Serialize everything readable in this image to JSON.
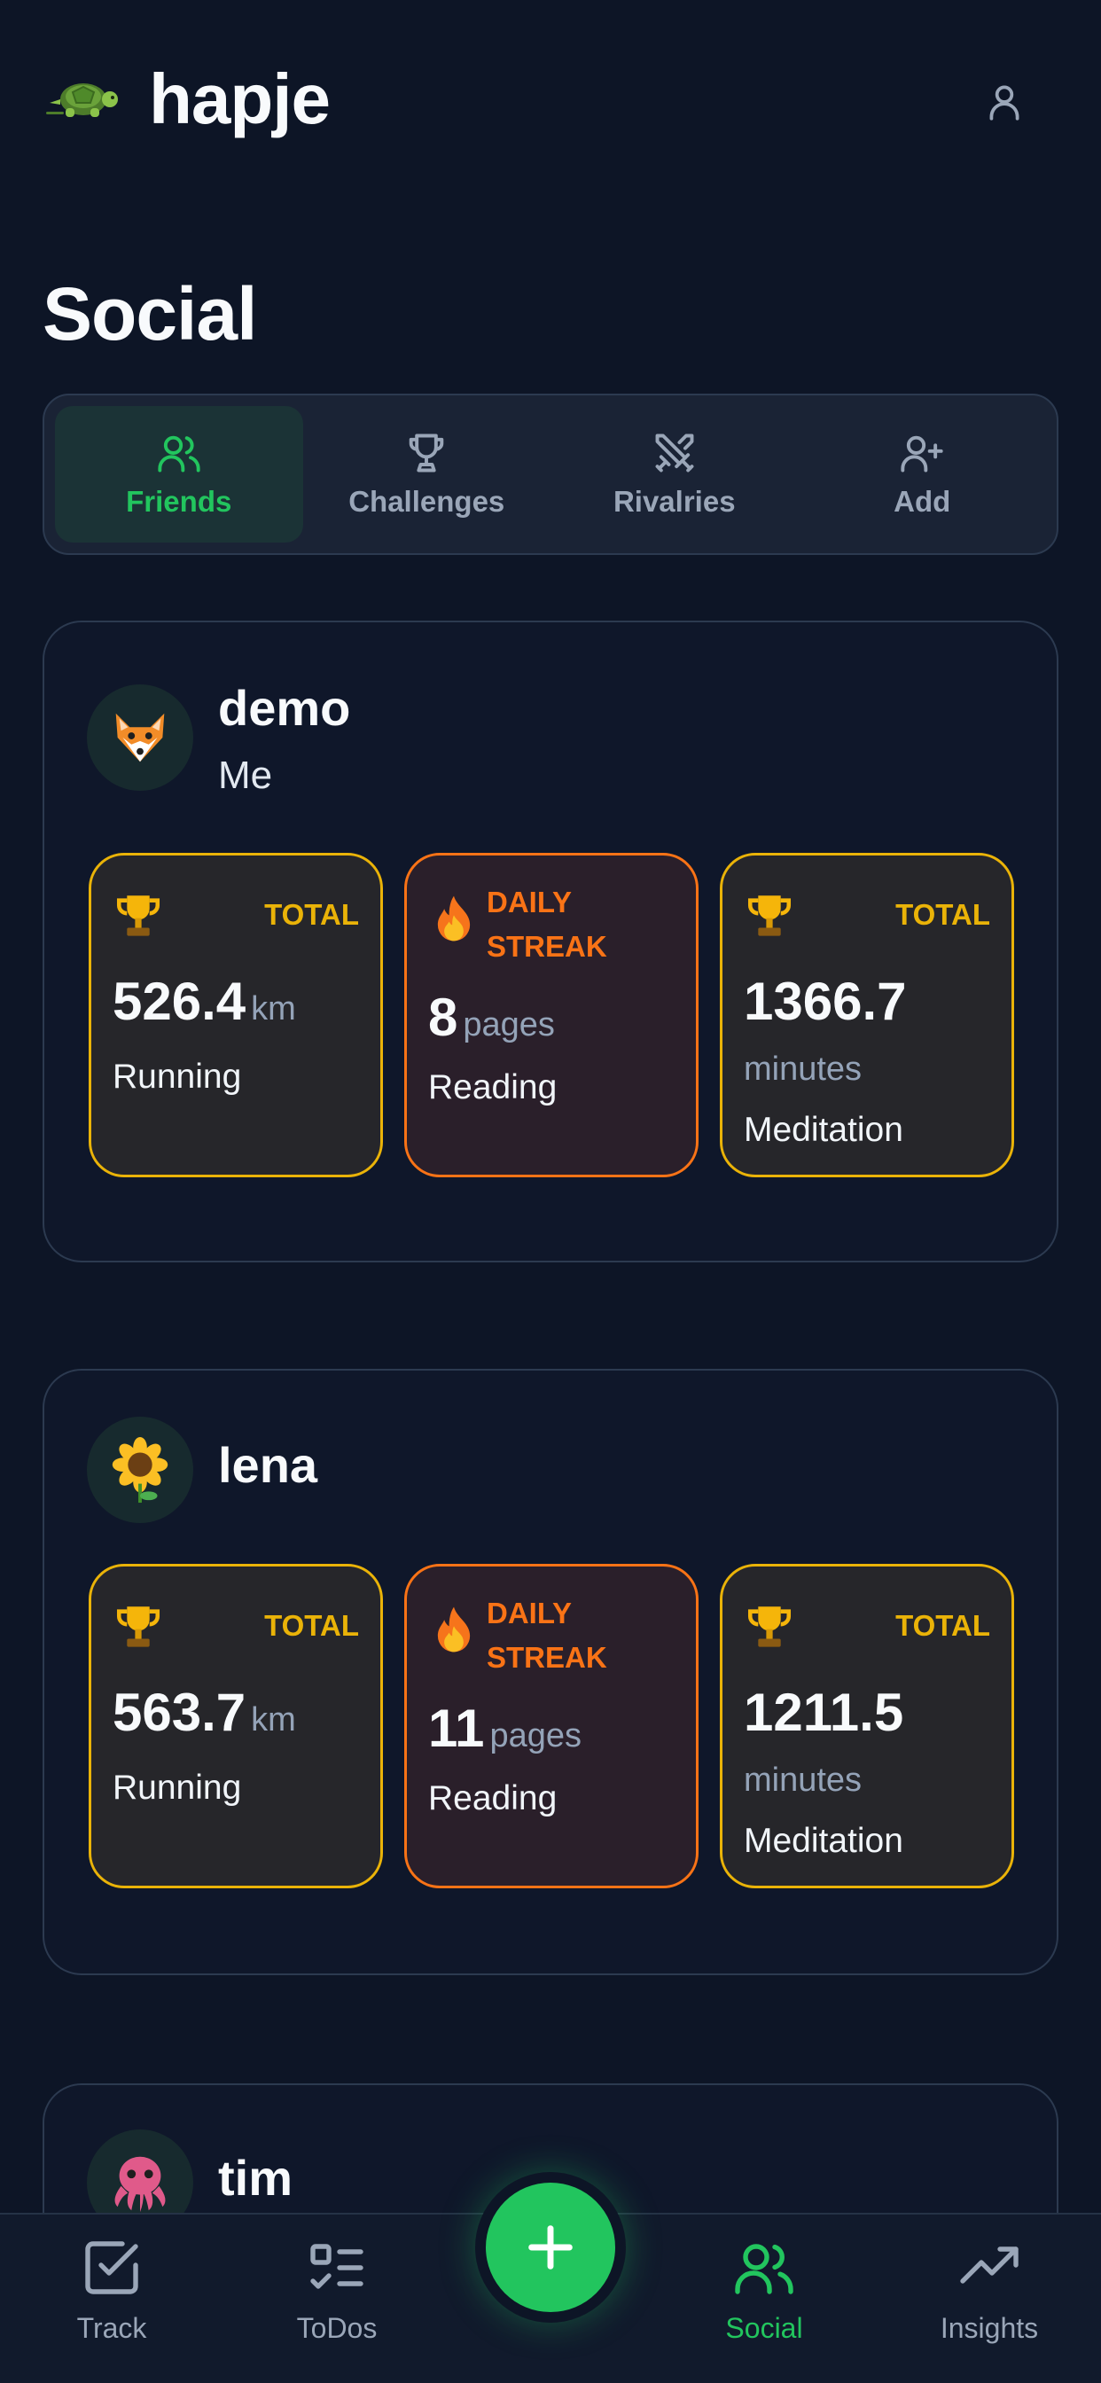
{
  "app": {
    "title": "hapje"
  },
  "page": {
    "title": "Social"
  },
  "tabs": [
    {
      "label": "Friends",
      "icon": "users-icon",
      "active": true
    },
    {
      "label": "Challenges",
      "icon": "trophy-icon",
      "active": false
    },
    {
      "label": "Rivalries",
      "icon": "swords-icon",
      "active": false
    },
    {
      "label": "Add",
      "icon": "user-plus-icon",
      "active": false
    }
  ],
  "friends": [
    {
      "name": "demo",
      "subtitle": "Me",
      "avatar": "fox-icon",
      "stats": [
        {
          "kind": "total",
          "tag": "TOTAL",
          "value": "526.4",
          "unit": "km",
          "activity": "Running"
        },
        {
          "kind": "streak",
          "tag": "DAILY STREAK",
          "value": "8",
          "unit": "pages",
          "activity": "Reading"
        },
        {
          "kind": "total",
          "tag": "TOTAL",
          "value": "1366.7",
          "unit": "minutes",
          "activity": "Meditation"
        }
      ]
    },
    {
      "name": "lena",
      "subtitle": "",
      "avatar": "sunflower-icon",
      "stats": [
        {
          "kind": "total",
          "tag": "TOTAL",
          "value": "563.7",
          "unit": "km",
          "activity": "Running"
        },
        {
          "kind": "streak",
          "tag": "DAILY STREAK",
          "value": "11",
          "unit": "pages",
          "activity": "Reading"
        },
        {
          "kind": "total",
          "tag": "TOTAL",
          "value": "1211.5",
          "unit": "minutes",
          "activity": "Meditation"
        }
      ]
    },
    {
      "name": "tim",
      "subtitle": "",
      "avatar": "octopus-icon"
    }
  ],
  "nav": [
    {
      "label": "Track",
      "icon": "check-square-icon",
      "active": false
    },
    {
      "label": "ToDos",
      "icon": "list-todo-icon",
      "active": false
    },
    {
      "label": "Social",
      "icon": "users-icon",
      "active": true
    },
    {
      "label": "Insights",
      "icon": "trending-up-icon",
      "active": false
    }
  ],
  "colors": {
    "accent": "#22c55e",
    "total": "#eab308",
    "streak": "#f97316",
    "background": "#0d1526"
  }
}
